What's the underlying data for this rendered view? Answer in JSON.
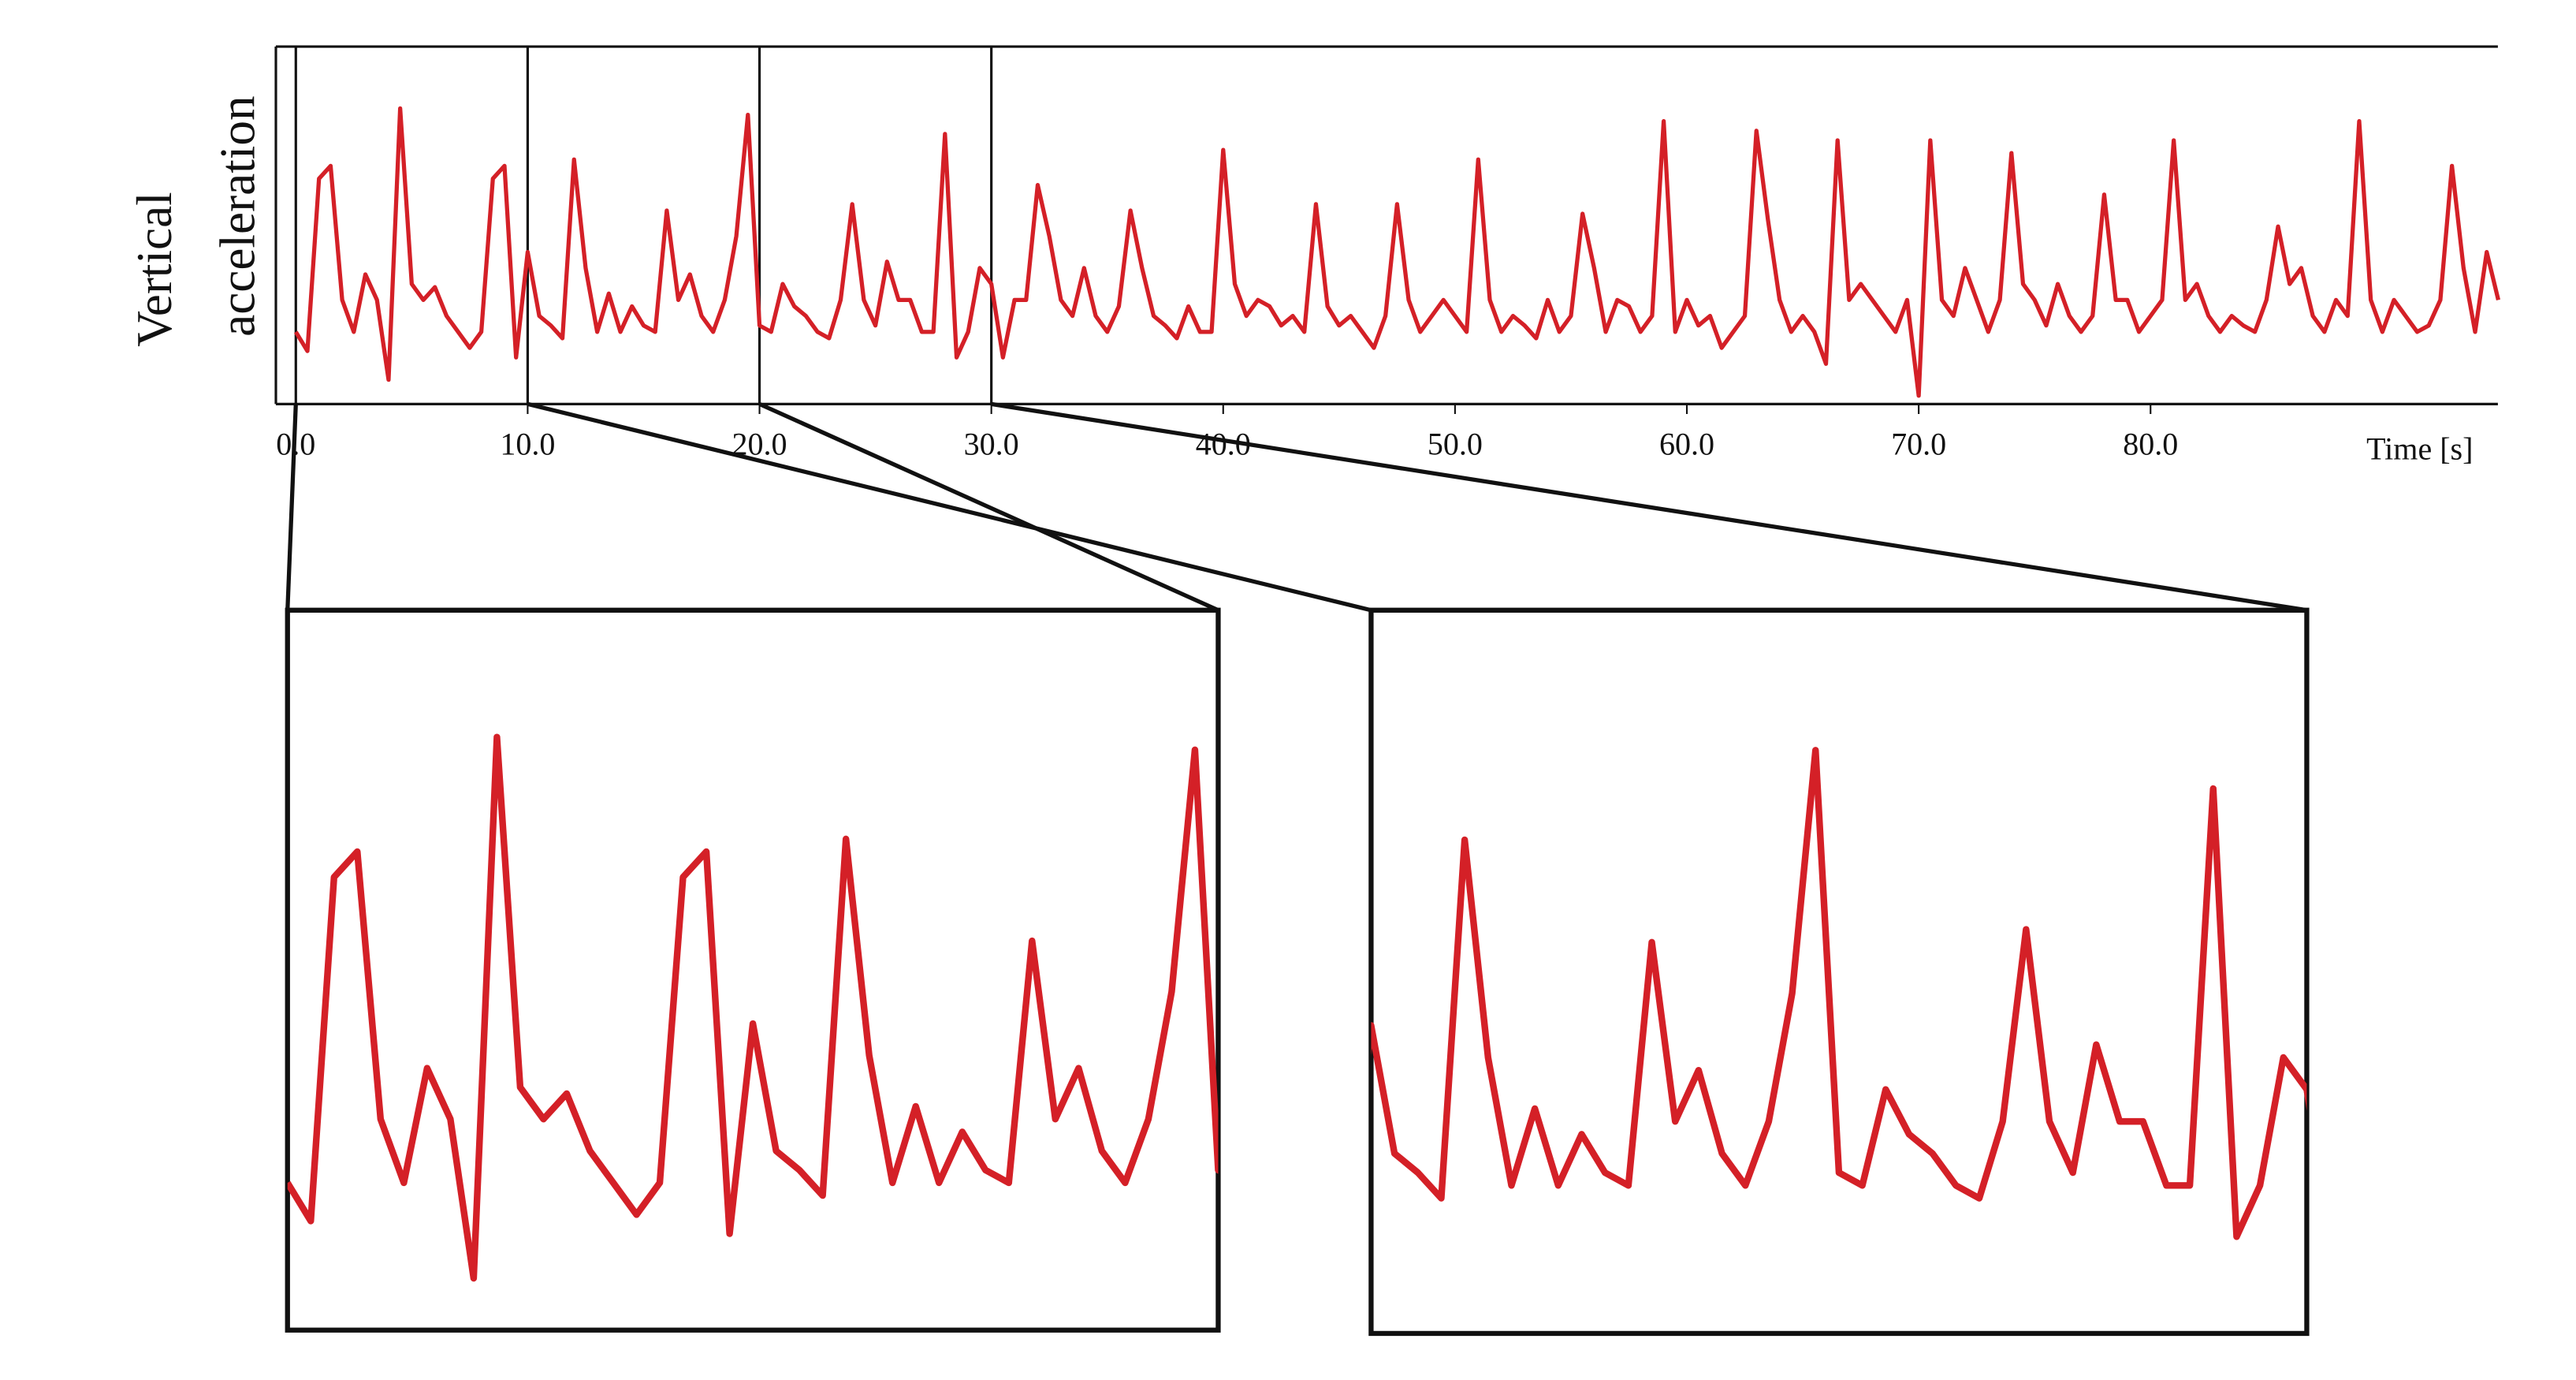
{
  "chart_data": {
    "type": "line",
    "ylabel": [
      "Vertical",
      "acceleration"
    ],
    "xlabel": "Time [s]",
    "xlim": [
      0,
      95
    ],
    "ylim": [
      0,
      1
    ],
    "xticks": [
      {
        "value": 0,
        "label": "0.0"
      },
      {
        "value": 10,
        "label": "10.0"
      },
      {
        "value": 20,
        "label": "20.0"
      },
      {
        "value": 30,
        "label": "30.0"
      },
      {
        "value": 40,
        "label": "40.0"
      },
      {
        "value": 50,
        "label": "50.0"
      },
      {
        "value": 60,
        "label": "60.0"
      },
      {
        "value": 70,
        "label": "70.0"
      },
      {
        "value": 80,
        "label": "80.0"
      }
    ],
    "windows": [
      [
        0,
        20
      ],
      [
        10,
        30
      ]
    ],
    "series": [
      {
        "color": "#d42027",
        "x": [
          0,
          0.5,
          1,
          1.5,
          2,
          2.5,
          3,
          3.5,
          4,
          4.5,
          5,
          5.5,
          6,
          6.5,
          7,
          7.5,
          8,
          8.5,
          9,
          9.5,
          10,
          10.5,
          11,
          11.5,
          12,
          12.5,
          13,
          13.5,
          14,
          14.5,
          15,
          15.5,
          16,
          16.5,
          17,
          17.5,
          18,
          18.5,
          19,
          19.5,
          20,
          20.5,
          21,
          21.5,
          22,
          22.5,
          23,
          23.5,
          24,
          24.5,
          25,
          25.5,
          26,
          26.5,
          27,
          27.5,
          28,
          28.5,
          29,
          29.5,
          30,
          30.5,
          31,
          31.5,
          32,
          32.5,
          33,
          33.5,
          34,
          34.5,
          35,
          35.5,
          36,
          36.5,
          37,
          37.5,
          38,
          38.5,
          39,
          39.5,
          40,
          40.5,
          41,
          41.5,
          42,
          42.5,
          43,
          43.5,
          44,
          44.5,
          45,
          45.5,
          46,
          46.5,
          47,
          47.5,
          48,
          48.5,
          49,
          49.5,
          50,
          50.5,
          51,
          51.5,
          52,
          52.5,
          53,
          53.5,
          54,
          54.5,
          55,
          55.5,
          56,
          56.5,
          57,
          57.5,
          58,
          58.5,
          59,
          59.5,
          60,
          60.5,
          61,
          61.5,
          62,
          62.5,
          63,
          63.5,
          64,
          64.5,
          65,
          65.5,
          66,
          66.5,
          67,
          67.5,
          68,
          68.5,
          69,
          69.5,
          70,
          70.5,
          71,
          71.5,
          72,
          72.5,
          73,
          73.5,
          74,
          74.5,
          75,
          75.5,
          76,
          76.5,
          77,
          77.5,
          78,
          78.5,
          79,
          79.5,
          80,
          80.5,
          81,
          81.5,
          82,
          82.5,
          83,
          83.5,
          84,
          84.5,
          85,
          85.5,
          86,
          86.5,
          87,
          87.5,
          88,
          88.5,
          89,
          89.5,
          90,
          90.5,
          91,
          91.5,
          92,
          92.5,
          93,
          93.5,
          94,
          94.5,
          95
        ],
        "values": [
          0.2,
          0.14,
          0.68,
          0.72,
          0.3,
          0.2,
          0.38,
          0.3,
          0.05,
          0.9,
          0.35,
          0.3,
          0.34,
          0.25,
          0.2,
          0.15,
          0.2,
          0.68,
          0.72,
          0.12,
          0.45,
          0.25,
          0.22,
          0.18,
          0.74,
          0.4,
          0.2,
          0.32,
          0.2,
          0.28,
          0.22,
          0.2,
          0.58,
          0.3,
          0.38,
          0.25,
          0.2,
          0.3,
          0.5,
          0.88,
          0.22,
          0.2,
          0.35,
          0.28,
          0.25,
          0.2,
          0.18,
          0.3,
          0.6,
          0.3,
          0.22,
          0.42,
          0.3,
          0.3,
          0.2,
          0.2,
          0.82,
          0.12,
          0.2,
          0.4,
          0.35,
          0.12,
          0.3,
          0.3,
          0.66,
          0.5,
          0.3,
          0.25,
          0.4,
          0.25,
          0.2,
          0.28,
          0.58,
          0.4,
          0.25,
          0.22,
          0.18,
          0.28,
          0.2,
          0.2,
          0.77,
          0.35,
          0.25,
          0.3,
          0.28,
          0.22,
          0.25,
          0.2,
          0.6,
          0.28,
          0.22,
          0.25,
          0.2,
          0.15,
          0.25,
          0.6,
          0.3,
          0.2,
          0.25,
          0.3,
          0.25,
          0.2,
          0.74,
          0.3,
          0.2,
          0.25,
          0.22,
          0.18,
          0.3,
          0.2,
          0.25,
          0.57,
          0.4,
          0.2,
          0.3,
          0.28,
          0.2,
          0.25,
          0.86,
          0.2,
          0.3,
          0.22,
          0.25,
          0.15,
          0.2,
          0.25,
          0.83,
          0.55,
          0.3,
          0.2,
          0.25,
          0.2,
          0.1,
          0.8,
          0.3,
          0.35,
          0.3,
          0.25,
          0.2,
          0.3,
          0.0,
          0.8,
          0.3,
          0.25,
          0.4,
          0.3,
          0.2,
          0.3,
          0.76,
          0.35,
          0.3,
          0.22,
          0.35,
          0.25,
          0.2,
          0.25,
          0.63,
          0.3,
          0.3,
          0.2,
          0.25,
          0.3,
          0.8,
          0.3,
          0.35,
          0.25,
          0.2,
          0.25,
          0.22,
          0.2,
          0.3,
          0.53,
          0.35,
          0.4,
          0.25,
          0.2,
          0.3,
          0.25,
          0.86,
          0.3,
          0.2,
          0.3,
          0.25,
          0.2,
          0.22,
          0.3,
          0.72,
          0.4,
          0.2,
          0.45,
          0.3
        ]
      }
    ]
  }
}
